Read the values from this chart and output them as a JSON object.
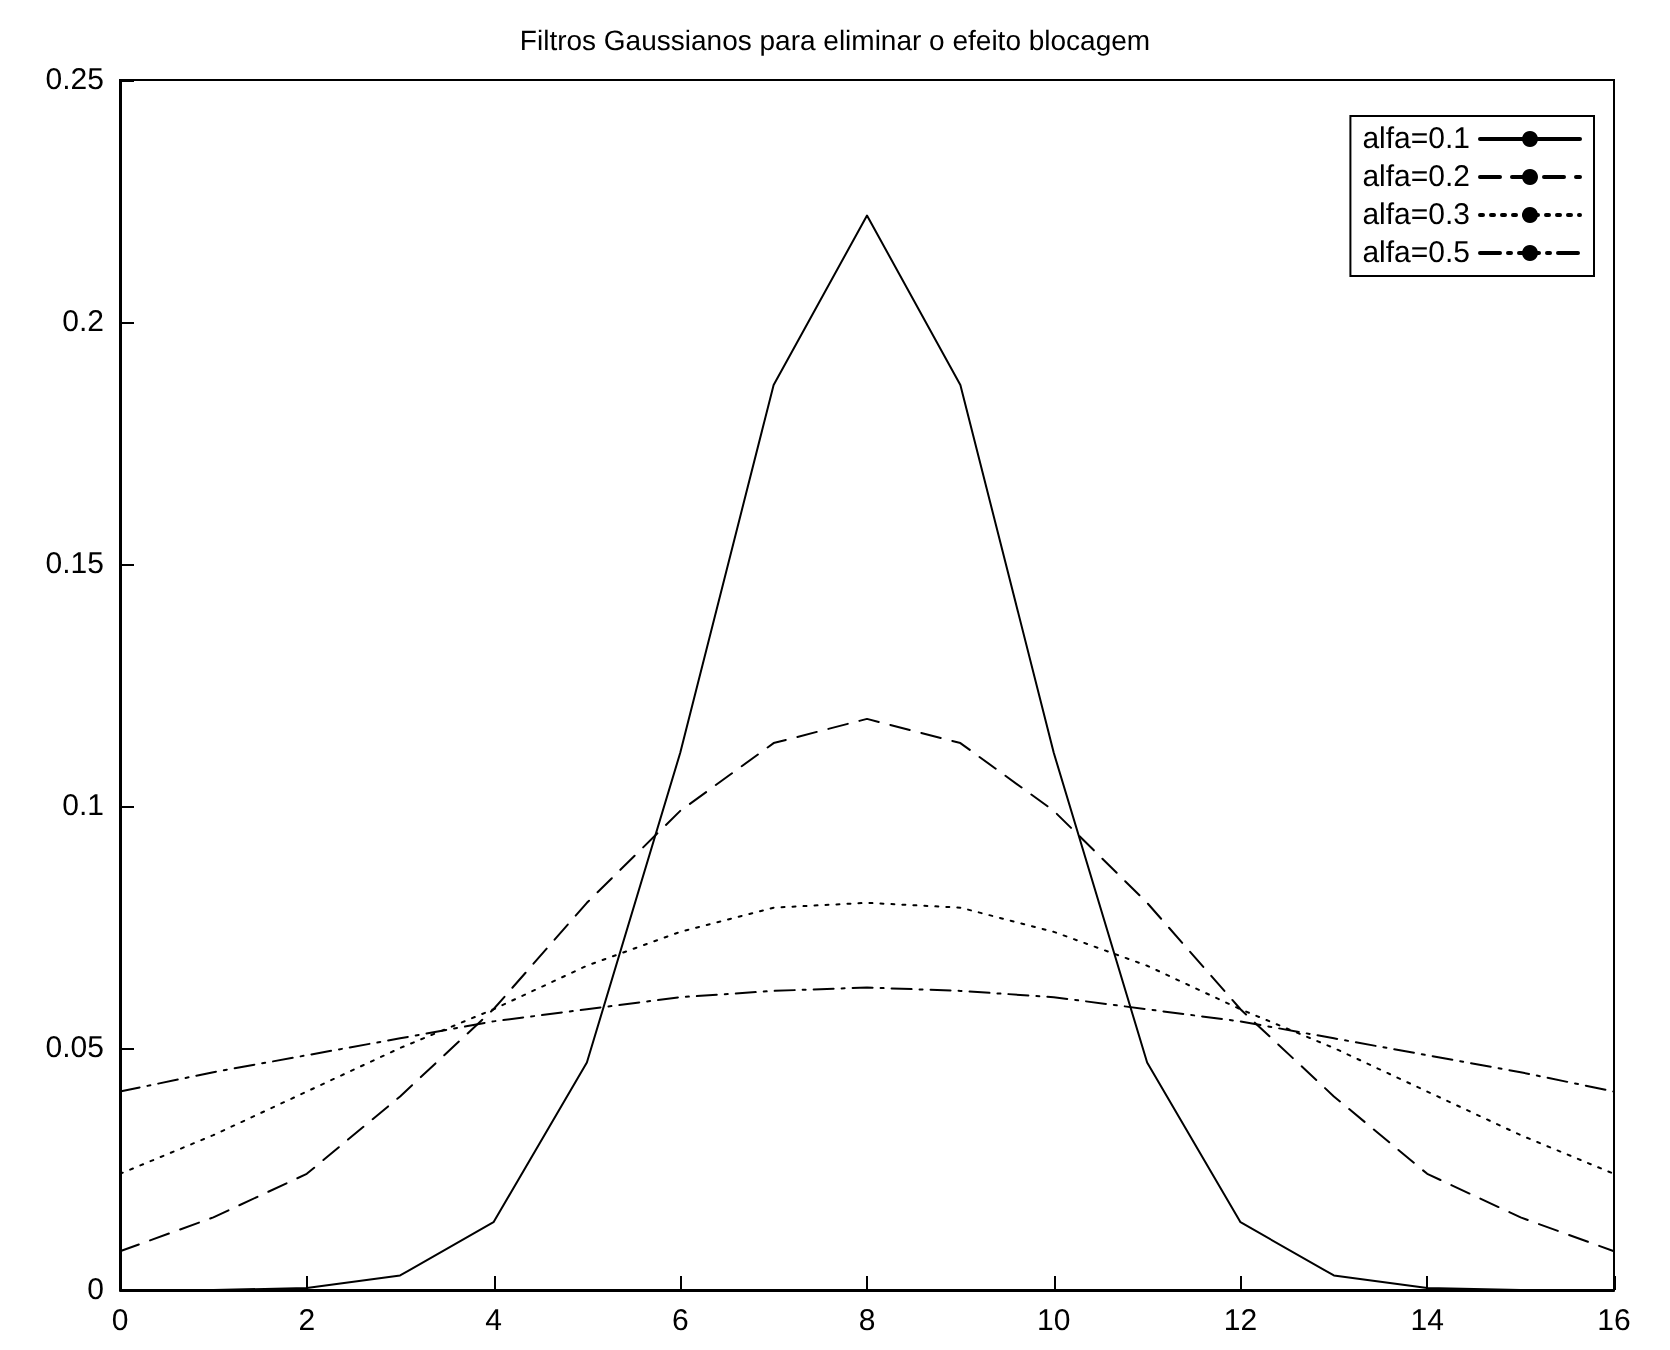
{
  "chart_data": {
    "type": "line",
    "title": "Filtros Gaussianos para eliminar o efeito blocagem",
    "x": [
      0,
      1,
      2,
      3,
      4,
      5,
      6,
      7,
      8,
      9,
      10,
      11,
      12,
      13,
      14,
      15,
      16
    ],
    "series": [
      {
        "name": "alfa=0.1",
        "color": "#000000",
        "line_style": "solid",
        "values": [
          0,
          0,
          0.0004,
          0.003,
          0.014,
          0.047,
          0.111,
          0.187,
          0.222,
          0.187,
          0.111,
          0.047,
          0.014,
          0.003,
          0.0004,
          0,
          0
        ]
      },
      {
        "name": "alfa=0.2",
        "color": "#000000",
        "line_style": "dashed",
        "values": [
          0.008,
          0.015,
          0.024,
          0.04,
          0.058,
          0.08,
          0.099,
          0.113,
          0.118,
          0.113,
          0.099,
          0.08,
          0.058,
          0.04,
          0.024,
          0.015,
          0.008
        ]
      },
      {
        "name": "alfa=0.3",
        "color": "#000000",
        "line_style": "dotted",
        "values": [
          0.024,
          0.032,
          0.041,
          0.05,
          0.058,
          0.067,
          0.074,
          0.079,
          0.08,
          0.079,
          0.074,
          0.067,
          0.058,
          0.05,
          0.041,
          0.032,
          0.024
        ]
      },
      {
        "name": "alfa=0.5",
        "color": "#000000",
        "line_style": "dashdot",
        "values": [
          0.041,
          0.045,
          0.0485,
          0.052,
          0.0555,
          0.058,
          0.0605,
          0.0618,
          0.0625,
          0.0618,
          0.0605,
          0.058,
          0.0555,
          0.052,
          0.0485,
          0.045,
          0.041
        ]
      }
    ],
    "xlim": [
      0,
      16
    ],
    "xticks": [
      0,
      2,
      4,
      6,
      8,
      10,
      12,
      14,
      16
    ],
    "ylim": [
      0,
      0.25
    ],
    "yticks": [
      0,
      0.05,
      0.1,
      0.15,
      0.2,
      0.25
    ],
    "grid": false,
    "legend": "top right",
    "marker": "none"
  }
}
